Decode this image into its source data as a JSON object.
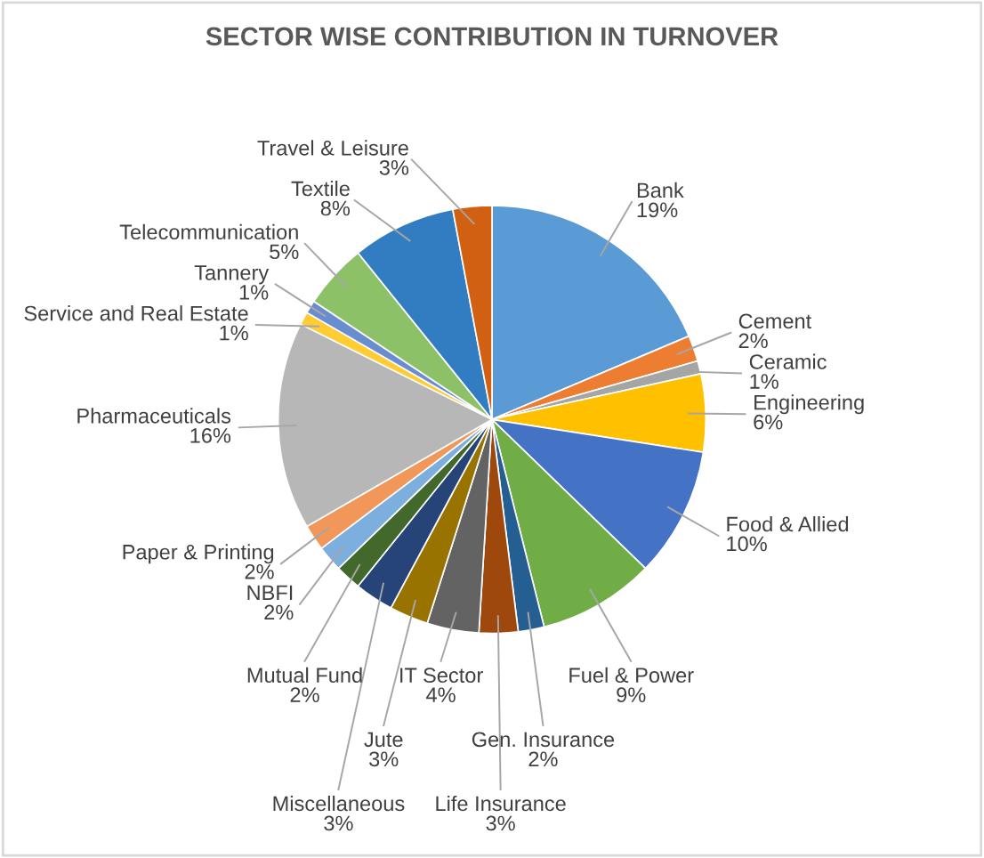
{
  "chart_data": {
    "type": "pie",
    "title": "SECTOR WISE CONTRIBUTION IN TURNOVER",
    "categories": [
      "Bank",
      "Cement",
      "Ceramic",
      "Engineering",
      "Food & Allied",
      "Fuel & Power",
      "Gen. Insurance",
      "Life Insurance",
      "IT Sector",
      "Jute",
      "Miscellaneous",
      "Mutual Fund",
      "NBFI",
      "Paper & Printing",
      "Pharmaceuticals",
      "Service and Real Estate",
      "Tannery",
      "Telecommunication",
      "Textile",
      "Travel & Leisure"
    ],
    "values": [
      19,
      2,
      1,
      6,
      10,
      9,
      2,
      3,
      4,
      3,
      3,
      2,
      2,
      2,
      16,
      1,
      1,
      5,
      8,
      3
    ],
    "value_labels": [
      "19%",
      "2%",
      "1%",
      "6%",
      "10%",
      "9%",
      "2%",
      "3%",
      "4%",
      "3%",
      "3%",
      "2%",
      "2%",
      "2%",
      "16%",
      "1%",
      "1%",
      "5%",
      "8%",
      "3%"
    ],
    "colors": [
      "#5b9bd5",
      "#ed7d31",
      "#a5a5a5",
      "#ffc000",
      "#4472c4",
      "#70ad47",
      "#255e91",
      "#9e480e",
      "#636363",
      "#997300",
      "#264478",
      "#43682b",
      "#7cafdd",
      "#f1975a",
      "#b7b7b7",
      "#ffcd33",
      "#698ed0",
      "#8cc168",
      "#327dc2",
      "#d26012"
    ],
    "legend": false
  }
}
